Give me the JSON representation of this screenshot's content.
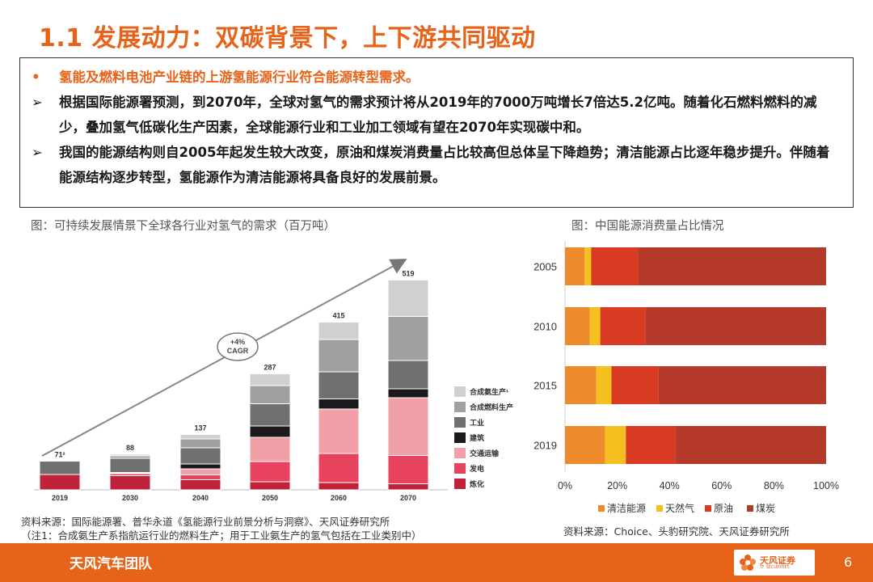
{
  "title": "1.1 发展动力：双碳背景下，上下游共同驱动",
  "bullets": [
    {
      "marker": "•",
      "text": "氢能及燃料电池产业链的上游氢能源行业符合能源转型需求。"
    },
    {
      "marker": "➢",
      "text": "根据国际能源署预测，到2070年，全球对氢气的需求预计将从2019年的7000万吨增长7倍达5.2亿吨。随着化石燃料燃料的减少，叠加氢气低碳化生产因素，全球能源行业和工业加工领域有望在2070年实现碳中和。"
    },
    {
      "marker": "➢",
      "text": "我国的能源结构则自2005年起发生较大改变，原油和煤炭消费量占比较高但总体呈下降趋势；清洁能源占比逐年稳步提升。伴随着能源结构逐步转型，氢能源作为清洁能源将具备良好的发展前景。"
    }
  ],
  "left_figure": {
    "caption": "图：可持续发展情景下全球各行业对氢气的需求（百万吨）",
    "source_line1": "资料来源：国际能源署、普华永道《氢能源行业前景分析与洞察》、天风证券研究所",
    "source_line2": "（注1：合成氨生产系指航运行业的燃料生产；用于工业氨生产的氢气包括在工业类别中）",
    "cagr_label": [
      "+4%",
      "CAGR"
    ]
  },
  "right_figure": {
    "caption": "图：中国能源消费量占比情况",
    "source": "资料来源：Choice、头豹研究院、天风证券研究所"
  },
  "chart_data": [
    {
      "type": "bar",
      "stacked": true,
      "title": "",
      "categories": [
        "2019",
        "2030",
        "2040",
        "2050",
        "2060",
        "2070"
      ],
      "totals": [
        71,
        88,
        137,
        287,
        415,
        519
      ],
      "total_labels": [
        "71²",
        "88",
        "137",
        "287",
        "415",
        "519"
      ],
      "series": [
        {
          "name": "炼化",
          "color": "#c0223a",
          "values": [
            38,
            35,
            25,
            20,
            18,
            15
          ]
        },
        {
          "name": "发电",
          "color": "#e8435e",
          "values": [
            0,
            5,
            12,
            50,
            72,
            70
          ]
        },
        {
          "name": "交通运输",
          "color": "#f2a0a8",
          "values": [
            0,
            2,
            15,
            60,
            110,
            143
          ]
        },
        {
          "name": "建筑",
          "color": "#1a1a1a",
          "values": [
            0,
            1,
            12,
            28,
            25,
            22
          ]
        },
        {
          "name": "工业",
          "color": "#707070",
          "values": [
            33,
            35,
            40,
            55,
            67,
            70
          ]
        },
        {
          "name": "合成燃料生产",
          "color": "#a0a0a0",
          "values": [
            0,
            6,
            22,
            45,
            80,
            109
          ]
        },
        {
          "name": "合成氨生产¹",
          "color": "#d0d0d0",
          "values": [
            0,
            4,
            11,
            29,
            43,
            90
          ]
        }
      ],
      "ylim": [
        0,
        600
      ],
      "legend": "right",
      "annotation": "+4% CAGR"
    },
    {
      "type": "bar",
      "orientation": "horizontal",
      "stacked": true,
      "title": "",
      "categories": [
        "2005",
        "2010",
        "2015",
        "2019"
      ],
      "x_ticks": [
        "0%",
        "20%",
        "40%",
        "60%",
        "80%",
        "100%"
      ],
      "xlim": [
        0,
        100
      ],
      "series": [
        {
          "name": "清洁能源",
          "color": "#ec8a2c",
          "values": [
            7.5,
            9.5,
            12,
            15.3
          ]
        },
        {
          "name": "天然气",
          "color": "#f5bf1f",
          "values": [
            2.5,
            4,
            5.8,
            8
          ]
        },
        {
          "name": "原油",
          "color": "#d83a22",
          "values": [
            18,
            17.2,
            18,
            18.9
          ]
        },
        {
          "name": "煤炭",
          "color": "#b53a2a",
          "values": [
            72,
            69.3,
            64.2,
            57.8
          ]
        }
      ],
      "legend": "bottom"
    }
  ],
  "footer": {
    "team": "天风汽车团队",
    "logo_text": "天风证券",
    "logo_sub": "TF SECURITIES",
    "page": "6"
  }
}
